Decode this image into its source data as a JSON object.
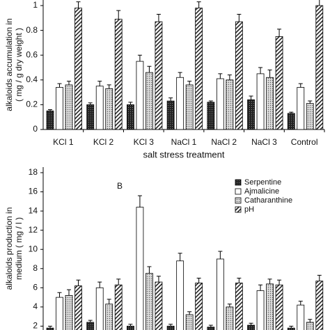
{
  "chart_data": [
    {
      "type": "bar",
      "y_label": [
        "alkaloids accumulation in",
        "( mg / g dry weight )"
      ],
      "x_label": "salt stress treatment",
      "categories": [
        "KCl 1",
        "KCl 2",
        "KCl 3",
        "NaCl 1",
        "NaCl 2",
        "NaCl 3",
        "Control"
      ],
      "series": [
        {
          "color": "#222222",
          "values": [
            0.15,
            0.2,
            0.2,
            0.23,
            0.22,
            0.24,
            0.13
          ],
          "errors": [
            0.01,
            0.015,
            0.02,
            0.025,
            0.01,
            0.03,
            0.01
          ]
        },
        {
          "color": "#ffffff",
          "values": [
            0.34,
            0.35,
            0.55,
            0.42,
            0.41,
            0.45,
            0.34
          ],
          "errors": [
            0.03,
            0.04,
            0.05,
            0.04,
            0.04,
            0.05,
            0.03
          ]
        },
        {
          "color": "#cccccc",
          "values": [
            0.36,
            0.33,
            0.46,
            0.36,
            0.4,
            0.42,
            0.21
          ],
          "errors": [
            0.03,
            0.03,
            0.05,
            0.03,
            0.04,
            0.06,
            0.02
          ]
        },
        {
          "color": "#ffffff",
          "values": [
            0.98,
            0.89,
            0.87,
            0.98,
            0.87,
            0.75,
            1.0
          ],
          "errors": [
            0.05,
            0.07,
            0.06,
            0.05,
            0.06,
            0.06,
            0.05
          ]
        }
      ],
      "ylim": [
        0,
        1
      ],
      "yticks": [
        0,
        0.2,
        0.4,
        0.6,
        0.8,
        1
      ]
    },
    {
      "type": "bar",
      "panel_label": "B",
      "y_label": [
        "alkaloids production in",
        "medium  ( mg / l )"
      ],
      "categories": [
        null,
        null,
        null,
        null,
        null,
        null,
        null
      ],
      "series": [
        {
          "name": "Serpentine",
          "color": "#222222",
          "values": [
            1.8,
            2.4,
            2.0,
            2.0,
            1.9,
            2.1,
            1.8
          ],
          "errors": [
            0.2,
            0.2,
            0.2,
            0.2,
            0.2,
            0.2,
            0.2
          ]
        },
        {
          "name": "Ajmalicine",
          "color": "#ffffff",
          "values": [
            5.0,
            6.0,
            14.4,
            8.8,
            9.0,
            5.7,
            4.2
          ],
          "errors": [
            0.5,
            0.6,
            1.2,
            0.8,
            0.8,
            0.6,
            0.4
          ]
        },
        {
          "name": "Catharanthine",
          "color": "#cccccc",
          "values": [
            5.2,
            4.3,
            7.5,
            3.2,
            4.0,
            6.4,
            2.4
          ],
          "errors": [
            0.6,
            0.5,
            0.7,
            0.3,
            0.3,
            0.5,
            0.3
          ]
        },
        {
          "name": "pH",
          "color": "#ffffff",
          "values": [
            6.2,
            6.3,
            6.6,
            6.5,
            6.5,
            6.3,
            6.7
          ],
          "errors": [
            0.6,
            0.6,
            0.6,
            0.5,
            0.5,
            0.5,
            0.6
          ]
        }
      ],
      "ylim": [
        0,
        18
      ],
      "yticks": [
        2,
        4,
        6,
        8,
        10,
        12,
        14,
        16,
        18
      ],
      "legend": "top-right"
    }
  ]
}
